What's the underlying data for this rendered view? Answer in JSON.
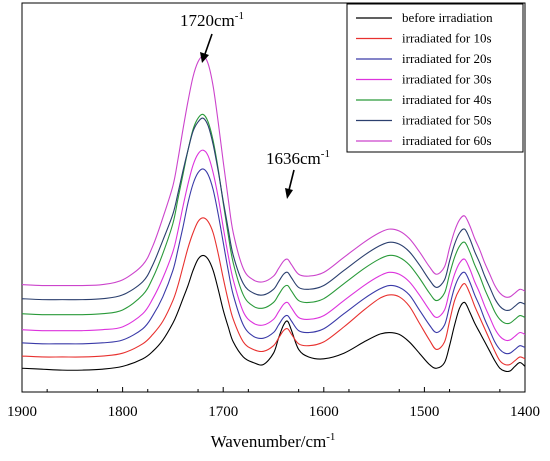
{
  "chart_data": {
    "type": "line",
    "xlabel": "Wavenumber/cm",
    "xlabel_superscript": "-1",
    "ylabel": "",
    "title": "",
    "x_reversed": true,
    "xlim": [
      1900,
      1400
    ],
    "x_ticks": [
      "1900",
      "1800",
      "1700",
      "1600",
      "1500",
      "1400"
    ],
    "y_ticks_shown": false,
    "grid": false,
    "legend_placement": "top-right",
    "annotations": [
      {
        "text": "1720cm",
        "sup": "-1",
        "points_to": 1720
      },
      {
        "text": "1636cm",
        "sup": "-1",
        "points_to": 1638
      }
    ],
    "x": [
      1900,
      1880,
      1860,
      1840,
      1820,
      1800,
      1780,
      1770,
      1760,
      1750,
      1745,
      1740,
      1735,
      1730,
      1725,
      1720,
      1715,
      1710,
      1705,
      1700,
      1695,
      1690,
      1680,
      1670,
      1660,
      1650,
      1645,
      1640,
      1636,
      1632,
      1625,
      1615,
      1600,
      1580,
      1560,
      1545,
      1535,
      1525,
      1515,
      1505,
      1495,
      1488,
      1480,
      1475,
      1470,
      1465,
      1460,
      1455,
      1450,
      1445,
      1440,
      1435,
      1430,
      1425,
      1420,
      1415,
      1410,
      1405,
      1400
    ],
    "series": [
      {
        "name": "before irradiation",
        "color": "#000000",
        "values": [
          0.02,
          0.015,
          0.01,
          0.01,
          0.015,
          0.03,
          0.07,
          0.11,
          0.17,
          0.26,
          0.32,
          0.39,
          0.46,
          0.54,
          0.6,
          0.62,
          0.6,
          0.54,
          0.44,
          0.33,
          0.24,
          0.16,
          0.08,
          0.05,
          0.04,
          0.1,
          0.18,
          0.25,
          0.27,
          0.22,
          0.12,
          0.08,
          0.07,
          0.1,
          0.16,
          0.2,
          0.21,
          0.2,
          0.16,
          0.1,
          0.04,
          0.02,
          0.05,
          0.14,
          0.25,
          0.34,
          0.37,
          0.32,
          0.26,
          0.21,
          0.16,
          0.11,
          0.06,
          0.02,
          0.005,
          0.005,
          0.03,
          0.05,
          0.03
        ]
      },
      {
        "name": "irradiated for 10s",
        "color": "#e8312f",
        "values": [
          0.085,
          0.08,
          0.08,
          0.08,
          0.085,
          0.1,
          0.15,
          0.2,
          0.27,
          0.38,
          0.46,
          0.56,
          0.66,
          0.74,
          0.8,
          0.82,
          0.8,
          0.74,
          0.63,
          0.5,
          0.38,
          0.28,
          0.16,
          0.12,
          0.11,
          0.14,
          0.18,
          0.22,
          0.23,
          0.2,
          0.15,
          0.14,
          0.16,
          0.24,
          0.33,
          0.39,
          0.41,
          0.4,
          0.35,
          0.26,
          0.17,
          0.12,
          0.16,
          0.27,
          0.38,
          0.44,
          0.47,
          0.42,
          0.35,
          0.29,
          0.23,
          0.17,
          0.11,
          0.06,
          0.04,
          0.04,
          0.06,
          0.08,
          0.07
        ]
      },
      {
        "name": "irradiated for 20s",
        "color": "#3a3aa8",
        "values": [
          0.155,
          0.15,
          0.15,
          0.15,
          0.155,
          0.17,
          0.23,
          0.3,
          0.4,
          0.54,
          0.65,
          0.77,
          0.9,
          1.0,
          1.06,
          1.08,
          1.05,
          0.97,
          0.84,
          0.69,
          0.54,
          0.41,
          0.25,
          0.19,
          0.18,
          0.21,
          0.25,
          0.29,
          0.3,
          0.27,
          0.22,
          0.21,
          0.23,
          0.31,
          0.39,
          0.44,
          0.46,
          0.45,
          0.41,
          0.33,
          0.25,
          0.21,
          0.25,
          0.35,
          0.45,
          0.51,
          0.53,
          0.48,
          0.41,
          0.35,
          0.28,
          0.22,
          0.16,
          0.12,
          0.1,
          0.1,
          0.12,
          0.14,
          0.13
        ]
      },
      {
        "name": "irradiated for 30s",
        "color": "#dd33dd",
        "values": [
          0.225,
          0.22,
          0.22,
          0.22,
          0.225,
          0.24,
          0.31,
          0.39,
          0.5,
          0.64,
          0.75,
          0.88,
          1.0,
          1.1,
          1.16,
          1.18,
          1.15,
          1.06,
          0.93,
          0.77,
          0.62,
          0.49,
          0.32,
          0.26,
          0.25,
          0.28,
          0.32,
          0.36,
          0.37,
          0.34,
          0.29,
          0.28,
          0.3,
          0.38,
          0.46,
          0.51,
          0.53,
          0.52,
          0.48,
          0.41,
          0.33,
          0.29,
          0.33,
          0.43,
          0.52,
          0.58,
          0.6,
          0.55,
          0.48,
          0.42,
          0.35,
          0.29,
          0.23,
          0.19,
          0.17,
          0.17,
          0.19,
          0.21,
          0.2
        ]
      },
      {
        "name": "irradiated for 40s",
        "color": "#2a9a3a",
        "values": [
          0.31,
          0.305,
          0.305,
          0.305,
          0.31,
          0.33,
          0.41,
          0.5,
          0.63,
          0.79,
          0.92,
          1.05,
          1.18,
          1.29,
          1.35,
          1.37,
          1.33,
          1.23,
          1.08,
          0.9,
          0.73,
          0.58,
          0.41,
          0.35,
          0.34,
          0.37,
          0.41,
          0.45,
          0.46,
          0.43,
          0.38,
          0.37,
          0.39,
          0.47,
          0.55,
          0.6,
          0.62,
          0.61,
          0.57,
          0.5,
          0.42,
          0.38,
          0.42,
          0.52,
          0.61,
          0.67,
          0.69,
          0.64,
          0.57,
          0.51,
          0.44,
          0.38,
          0.32,
          0.28,
          0.26,
          0.26,
          0.28,
          0.3,
          0.29
        ]
      },
      {
        "name": "irradiated for 50s",
        "color": "#2b3f6e",
        "values": [
          0.39,
          0.385,
          0.385,
          0.385,
          0.39,
          0.41,
          0.48,
          0.57,
          0.7,
          0.84,
          0.95,
          1.07,
          1.18,
          1.28,
          1.33,
          1.35,
          1.31,
          1.21,
          1.07,
          0.91,
          0.76,
          0.62,
          0.47,
          0.42,
          0.41,
          0.44,
          0.48,
          0.52,
          0.53,
          0.5,
          0.45,
          0.44,
          0.46,
          0.54,
          0.62,
          0.67,
          0.69,
          0.68,
          0.64,
          0.57,
          0.49,
          0.45,
          0.49,
          0.59,
          0.68,
          0.74,
          0.76,
          0.71,
          0.64,
          0.58,
          0.51,
          0.45,
          0.39,
          0.35,
          0.33,
          0.33,
          0.35,
          0.37,
          0.36
        ]
      },
      {
        "name": "irradiated for 60s",
        "color": "#cc44cc",
        "values": [
          0.465,
          0.46,
          0.46,
          0.46,
          0.465,
          0.49,
          0.57,
          0.67,
          0.82,
          0.99,
          1.13,
          1.29,
          1.44,
          1.57,
          1.65,
          1.68,
          1.64,
          1.52,
          1.33,
          1.12,
          0.92,
          0.74,
          0.55,
          0.49,
          0.48,
          0.51,
          0.55,
          0.59,
          0.6,
          0.57,
          0.52,
          0.51,
          0.53,
          0.61,
          0.69,
          0.74,
          0.76,
          0.75,
          0.71,
          0.64,
          0.56,
          0.52,
          0.56,
          0.66,
          0.75,
          0.81,
          0.83,
          0.78,
          0.71,
          0.65,
          0.58,
          0.52,
          0.46,
          0.42,
          0.4,
          0.4,
          0.42,
          0.44,
          0.43
        ]
      }
    ]
  }
}
